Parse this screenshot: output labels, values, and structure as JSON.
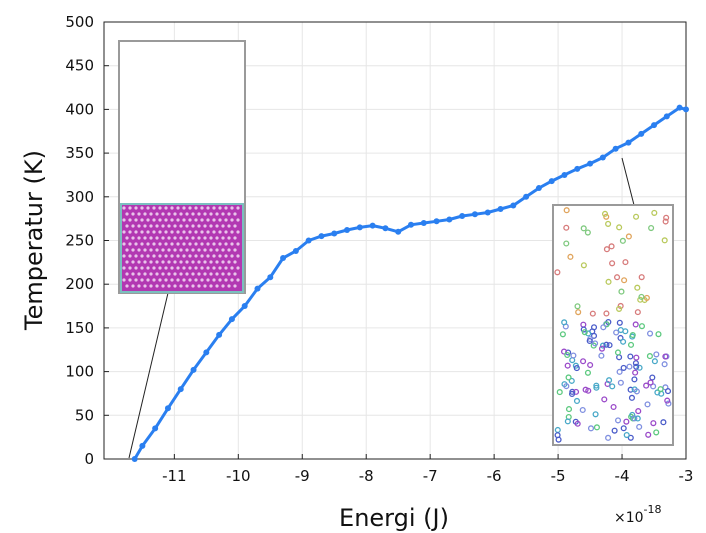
{
  "chart_data": {
    "type": "line",
    "xlabel": "Energi (J)",
    "ylabel": "Temperatur (K)",
    "x_multiplier": "×10",
    "x_multiplier_exponent": "-18",
    "xlim": [
      -12.1,
      -3.0
    ],
    "ylim": [
      0,
      500
    ],
    "x_ticks": [
      -11,
      -10,
      -9,
      -8,
      -7,
      -6,
      -5,
      -4,
      -3
    ],
    "y_ticks": [
      0,
      50,
      100,
      150,
      200,
      250,
      300,
      350,
      400,
      450,
      500
    ],
    "x_tick_labels": [
      "-11",
      "-10",
      "-9",
      "-8",
      "-7",
      "-6",
      "-5",
      "-4",
      "-3"
    ],
    "y_tick_labels": [
      "0",
      "50",
      "100",
      "150",
      "200",
      "250",
      "300",
      "350",
      "400",
      "450",
      "500"
    ],
    "grid": true,
    "series": [
      {
        "color": "#2a7ff0",
        "x": [
          -11.62,
          -11.5,
          -11.3,
          -11.1,
          -10.9,
          -10.7,
          -10.5,
          -10.3,
          -10.1,
          -9.9,
          -9.7,
          -9.5,
          -9.3,
          -9.1,
          -8.9,
          -8.7,
          -8.5,
          -8.3,
          -8.1,
          -7.9,
          -7.7,
          -7.5,
          -7.3,
          -7.1,
          -6.9,
          -6.7,
          -6.5,
          -6.3,
          -6.1,
          -5.9,
          -5.7,
          -5.5,
          -5.3,
          -5.1,
          -4.9,
          -4.7,
          -4.5,
          -4.3,
          -4.1,
          -3.9,
          -3.7,
          -3.5,
          -3.3,
          -3.1,
          -3.0
        ],
        "y": [
          0,
          15,
          35,
          58,
          80,
          102,
          122,
          142,
          160,
          175,
          195,
          208,
          230,
          238,
          250,
          255,
          258,
          262,
          265,
          267,
          264,
          260,
          268,
          270,
          272,
          274,
          278,
          280,
          282,
          286,
          290,
          300,
          310,
          318,
          325,
          332,
          338,
          345,
          355,
          362,
          372,
          382,
          392,
          402,
          400
        ]
      }
    ]
  }
}
